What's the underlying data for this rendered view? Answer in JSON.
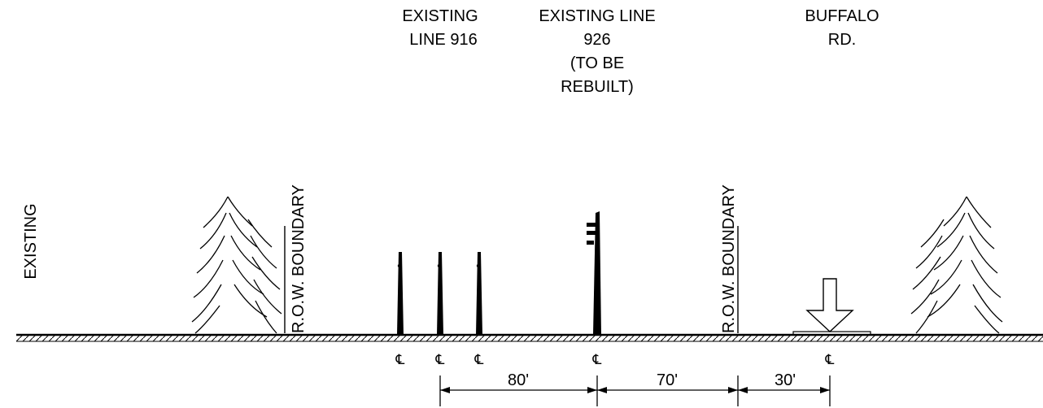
{
  "section_label": "EXISTING",
  "labels": [
    {
      "lines": [
        "EXISTING",
        "LINE 916"
      ]
    },
    {
      "lines": [
        "EXISTING LINE",
        "926",
        "(TO BE",
        "REBUILT)"
      ]
    },
    {
      "lines": [
        "BUFFALO",
        "RD."
      ]
    }
  ],
  "row_boundaries": [
    "R.O.W. BOUNDARY",
    "R.O.W. BOUNDARY"
  ],
  "centerlines": [
    "℄",
    "℄",
    "℄",
    "℄",
    "℄"
  ],
  "dimensions": [
    "80'",
    "70'",
    "30'"
  ]
}
